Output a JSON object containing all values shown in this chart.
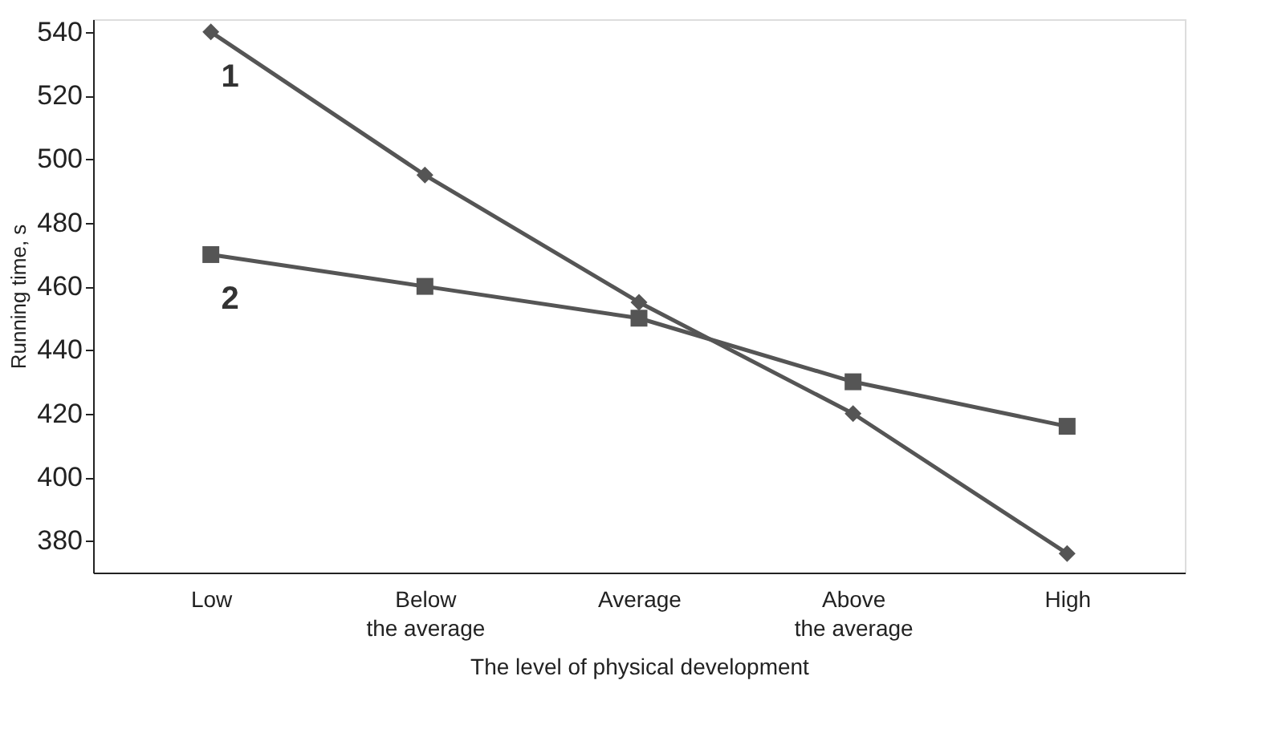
{
  "chart_data": {
    "type": "line",
    "xlabel": "The level of physical development",
    "ylabel": "Running time, s",
    "categories": [
      "Low",
      "Below\nthe average",
      "Average",
      "Above\nthe average",
      "High"
    ],
    "series": [
      {
        "name": "1",
        "color": "#555555",
        "marker": "diamond",
        "values": [
          540,
          495,
          455,
          420,
          376
        ]
      },
      {
        "name": "2",
        "color": "#555555",
        "marker": "square",
        "values": [
          470,
          460,
          450,
          430,
          416
        ]
      }
    ],
    "ylim": [
      370,
      544
    ],
    "yticks": [
      380,
      400,
      420,
      440,
      460,
      480,
      500,
      520,
      540
    ],
    "grid": false,
    "legend": "top left",
    "line_style": "solid"
  }
}
